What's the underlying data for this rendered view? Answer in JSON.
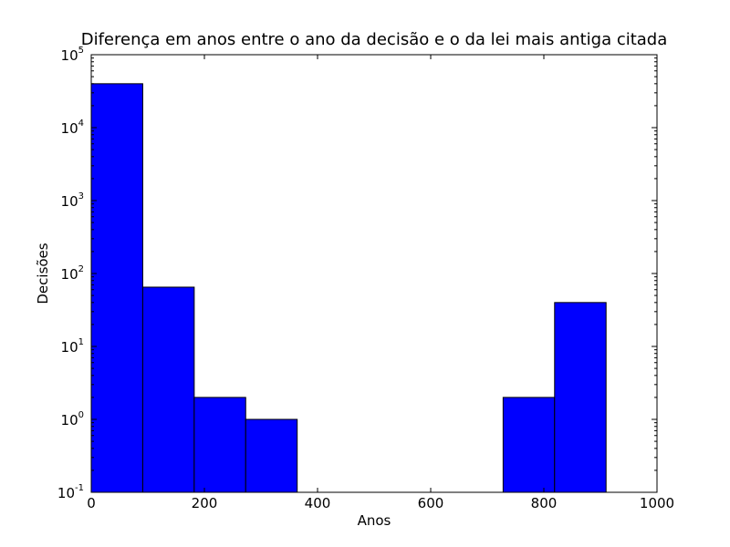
{
  "chart_data": {
    "type": "bar",
    "title": "Diferença em anos entre o ano da decisão e o da lei mais antiga citada",
    "xlabel": "Anos",
    "ylabel": "Decisões",
    "xlim": [
      0,
      1000
    ],
    "ylim": [
      0.1,
      100000
    ],
    "yscale": "log",
    "xticks": [
      "0",
      "200",
      "400",
      "600",
      "800",
      "1000"
    ],
    "yticks": [
      {
        "base": "10",
        "exp": "-1"
      },
      {
        "base": "10",
        "exp": "0"
      },
      {
        "base": "10",
        "exp": "1"
      },
      {
        "base": "10",
        "exp": "2"
      },
      {
        "base": "10",
        "exp": "3"
      },
      {
        "base": "10",
        "exp": "4"
      },
      {
        "base": "10",
        "exp": "5"
      }
    ],
    "bins": [
      {
        "x0": 0,
        "x1": 91,
        "value": 40000
      },
      {
        "x0": 91,
        "x1": 182,
        "value": 65
      },
      {
        "x0": 182,
        "x1": 273,
        "value": 2
      },
      {
        "x0": 273,
        "x1": 364,
        "value": 1
      },
      {
        "x0": 364,
        "x1": 455,
        "value": 0
      },
      {
        "x0": 455,
        "x1": 546,
        "value": 0
      },
      {
        "x0": 546,
        "x1": 637,
        "value": 0
      },
      {
        "x0": 637,
        "x1": 728,
        "value": 0
      },
      {
        "x0": 728,
        "x1": 819,
        "value": 2
      },
      {
        "x0": 819,
        "x1": 910,
        "value": 40
      }
    ],
    "bar_color": "#0000ff",
    "grid": false,
    "legend": "none"
  }
}
